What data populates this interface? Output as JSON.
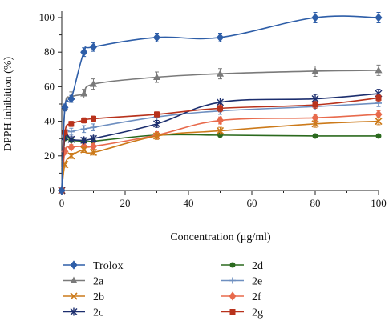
{
  "chart_data": {
    "type": "line",
    "xlabel": "Concentration (μg/ml)",
    "ylabel": "DPPH inhibition (%)",
    "xlim": [
      0,
      100
    ],
    "ylim": [
      0,
      100
    ],
    "x_ticks": [
      "0",
      "20",
      "40",
      "60",
      "80",
      "100"
    ],
    "y_ticks": [
      "0",
      "20",
      "40",
      "60",
      "80",
      "100"
    ],
    "x": [
      0,
      1,
      3,
      7,
      10,
      30,
      50,
      80,
      100
    ],
    "legend_position": "bottom",
    "series": [
      {
        "name": "Trolox",
        "color": "#2e5ea8",
        "marker": "diamond",
        "values": [
          0,
          48,
          53,
          80,
          83,
          88.5,
          88.5,
          100,
          100
        ],
        "errors": [
          0,
          2,
          2,
          2.5,
          2.5,
          2.5,
          2.5,
          3,
          3
        ]
      },
      {
        "name": "2a",
        "color": "#7a7a7a",
        "marker": "triangle",
        "values": [
          0,
          48,
          54,
          56,
          61.5,
          65.5,
          67.5,
          69,
          69.5
        ],
        "errors": [
          0,
          2,
          3,
          2.5,
          3,
          3,
          3,
          3,
          3
        ]
      },
      {
        "name": "2b",
        "color": "#cc7a1a",
        "marker": "x",
        "values": [
          0,
          15,
          20,
          23.5,
          22,
          31.5,
          34.5,
          38.5,
          40
        ],
        "errors": [
          0,
          1.5,
          1.5,
          1.5,
          1.5,
          2,
          2,
          2,
          2
        ]
      },
      {
        "name": "2c",
        "color": "#1c2e6e",
        "marker": "star",
        "values": [
          0,
          31,
          29.5,
          29,
          30,
          38.5,
          51,
          53,
          56
        ],
        "errors": [
          0,
          1.5,
          1.5,
          1.5,
          1.5,
          2,
          2.5,
          2.5,
          2.5
        ]
      },
      {
        "name": "2d",
        "color": "#2b6a1e",
        "marker": "circle",
        "values": [
          0,
          30,
          29,
          28.5,
          28.5,
          32,
          32,
          31.5,
          31.5
        ],
        "errors": [
          0,
          1,
          1,
          1,
          1,
          1,
          1,
          1,
          1
        ]
      },
      {
        "name": "2e",
        "color": "#6e8fc0",
        "marker": "plus",
        "values": [
          0,
          32,
          34,
          35.5,
          36.5,
          42.5,
          46,
          48.5,
          50.5
        ],
        "errors": [
          0,
          1.5,
          2,
          2,
          2,
          2,
          2,
          2,
          2
        ]
      },
      {
        "name": "2f",
        "color": "#e86a4c",
        "marker": "diamond",
        "values": [
          0,
          22.5,
          25,
          25.5,
          25.5,
          32,
          40.5,
          42,
          44
        ],
        "errors": [
          0,
          1.5,
          1.5,
          1.5,
          1.5,
          2,
          2,
          2,
          2
        ]
      },
      {
        "name": "2g",
        "color": "#b8321c",
        "marker": "square",
        "values": [
          0,
          33.5,
          38.5,
          40.5,
          41.5,
          44,
          47.5,
          49.5,
          53.5
        ],
        "errors": [
          0,
          1.5,
          1.5,
          1.5,
          1.5,
          1.5,
          2,
          2,
          2
        ]
      }
    ]
  }
}
